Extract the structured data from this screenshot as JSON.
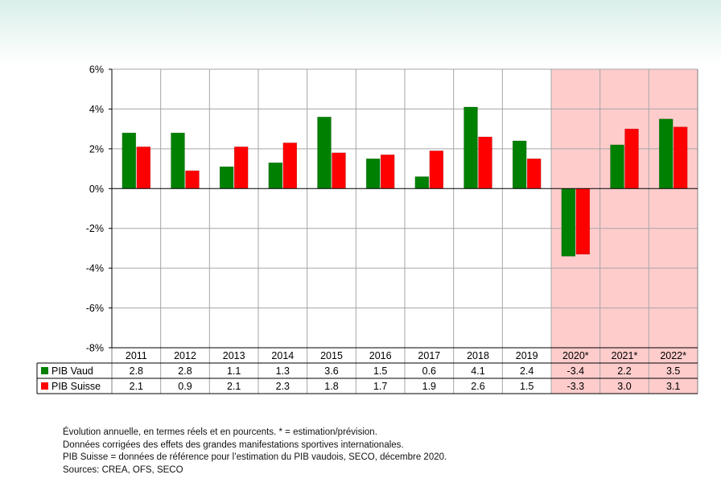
{
  "chart_data": {
    "type": "bar",
    "categories": [
      "2011",
      "2012",
      "2013",
      "2014",
      "2015",
      "2016",
      "2017",
      "2018",
      "2019",
      "2020*",
      "2021*",
      "2022*"
    ],
    "series": [
      {
        "name": "PIB Vaud",
        "color": "#008000",
        "values": [
          2.8,
          2.8,
          1.1,
          1.3,
          3.6,
          1.5,
          0.6,
          4.1,
          2.4,
          -3.4,
          2.2,
          3.5
        ],
        "labels": [
          "2.8",
          "2.8",
          "1.1",
          "1.3",
          "3.6",
          "1.5",
          "0.6",
          "4.1",
          "2.4",
          "-3.4",
          "2.2",
          "3.5"
        ]
      },
      {
        "name": "PIB Suisse",
        "color": "#ff0000",
        "values": [
          2.1,
          0.9,
          2.1,
          2.3,
          1.8,
          1.7,
          1.9,
          2.6,
          1.5,
          -3.3,
          3.0,
          3.1
        ],
        "labels": [
          "2.1",
          "0.9",
          "2.1",
          "2.3",
          "1.8",
          "1.7",
          "1.9",
          "2.6",
          "1.5",
          "-3.3",
          "3.0",
          "3.1"
        ]
      }
    ],
    "ylim": [
      -8,
      6
    ],
    "yticks": [
      6,
      4,
      2,
      0,
      -2,
      -4,
      -6,
      -8
    ],
    "ytick_labels": [
      "6%",
      "4%",
      "2%",
      "0%",
      "-2%",
      "-4%",
      "-6%",
      "-8%"
    ],
    "highlighted_categories": [
      "2020*",
      "2021*",
      "2022*"
    ],
    "highlight_color": "#ffcccc",
    "grid": true,
    "legend": "data-table"
  },
  "notes": {
    "line1": "Évolution annuelle, en termes réels et en pourcents. * = estimation/prévision.",
    "line2": "Données corrigées des effets des grandes manifestations sportives internationales.",
    "line3": "PIB Suisse = données de référence pour l’estimation du PIB vaudois, SECO, décembre 2020.",
    "line4": "Sources: CREA, OFS, SECO"
  }
}
